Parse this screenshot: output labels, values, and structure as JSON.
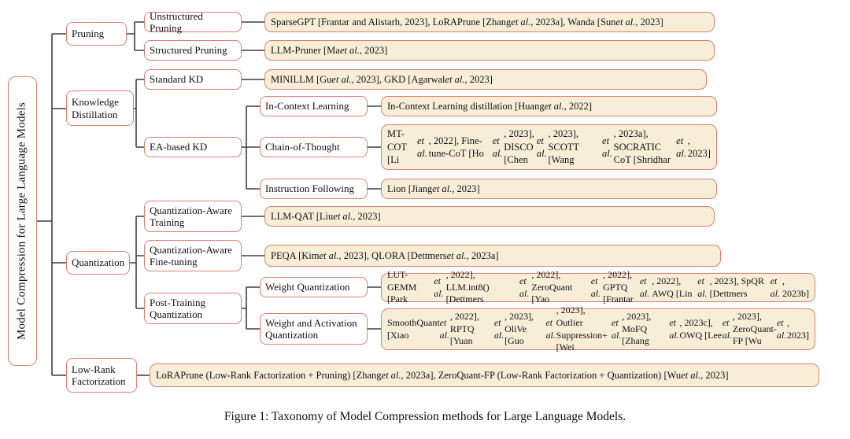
{
  "caption": "Figure 1: Taxonomy of Model Compression methods for Large Language Models.",
  "colors": {
    "leaf_fill": "#f8eed8",
    "node_fill": "#ffffff",
    "box_border": "#dd8073",
    "connector": "#3f3f3f"
  },
  "taxonomy": {
    "root": {
      "label": "Model Compression for Large Language Models"
    },
    "pruning": {
      "label": "Pruning",
      "unstructured": {
        "label": "Unstructured Pruning",
        "papers": "SparseGPT [Frantar and Alistarh, 2023], LoRAPrune [Zhang *et al.*, 2023a], Wanda [Sun *et al.*, 2023]"
      },
      "structured": {
        "label": "Structured Pruning",
        "papers": "LLM-Pruner [Ma *et al.*, 2023]"
      }
    },
    "knowledge_distillation": {
      "label": "Knowledge\nDistillation",
      "standard_kd": {
        "label": "Standard KD",
        "papers": "MINILLM [Gu *et al.*, 2023], GKD [Agarwal *et al.*, 2023]"
      },
      "ea_based_kd": {
        "label": "EA-based KD",
        "in_context_learning": {
          "label": "In-Context Learning",
          "papers": "In-Context Learning distillation [Huang *et al.*, 2022]"
        },
        "chain_of_thought": {
          "label": "Chain-of-Thought",
          "papers": "MT-COT [Li *et al.*, 2022], Fine-tune-CoT [Ho *et al.*, 2023],\nDISCO [Chen *et al.*, 2023], SCOTT [Wang *et al.*, 2023a],\nSOCRATIC CoT [Shridhar *et al.*, 2023]"
        },
        "instruction_following": {
          "label": "Instruction Following",
          "papers": "Lion [Jiang *et al.*, 2023]"
        }
      }
    },
    "quantization": {
      "label": "Quantization",
      "quantization_aware_training": {
        "label": "Quantization-Aware\nTraining",
        "papers": "LLM-QAT [Liu *et al.*, 2023]"
      },
      "quantization_aware_fine_tuning": {
        "label": "Quantization-Aware\nFine-tuning",
        "papers": "PEQA [Kim *et al.*, 2023], QLORA [Dettmers *et al.*, 2023a]"
      },
      "post_training_quantization": {
        "label": "Post-Training\nQuantization",
        "weight_quantization": {
          "label": "Weight Quantization",
          "papers": "LUT-GEMM [Park *et al.*, 2022], LLM.int8() [Dettmers *et al.*, 2022], ZeroQuant [Yao *et al.*, 2022],\nGPTQ [Frantar *et al.*, 2022], AWQ [Lin *et al.*, 2023], SpQR [Dettmers *et al.*, 2023b]"
        },
        "weight_and_activation_quantization": {
          "label": "Weight and Activation\nQuantization",
          "papers": "SmoothQuant [Xiao *et al.*, 2022], RPTQ [Yuan *et al.*, 2023], OliVe [Guo *et al.*, 2023],\nOutlier Suppression+ [Wei *et al.*, 2023], MoFQ [Zhang *et al.*, 2023c], OWQ [Lee *et al.*, 2023],\nZeroQuant-FP [Wu *et al.*, 2023]"
        }
      }
    },
    "low_rank_factorization": {
      "label": "Low-Rank\nFactorization",
      "papers": "LoRAPrune (Low-Rank Factorization + Pruning) [Zhang *et al.*, 2023a], ZeroQuant-FP (Low-Rank Factorization + Quantization) [Wu *et al.*, 2023]"
    }
  }
}
